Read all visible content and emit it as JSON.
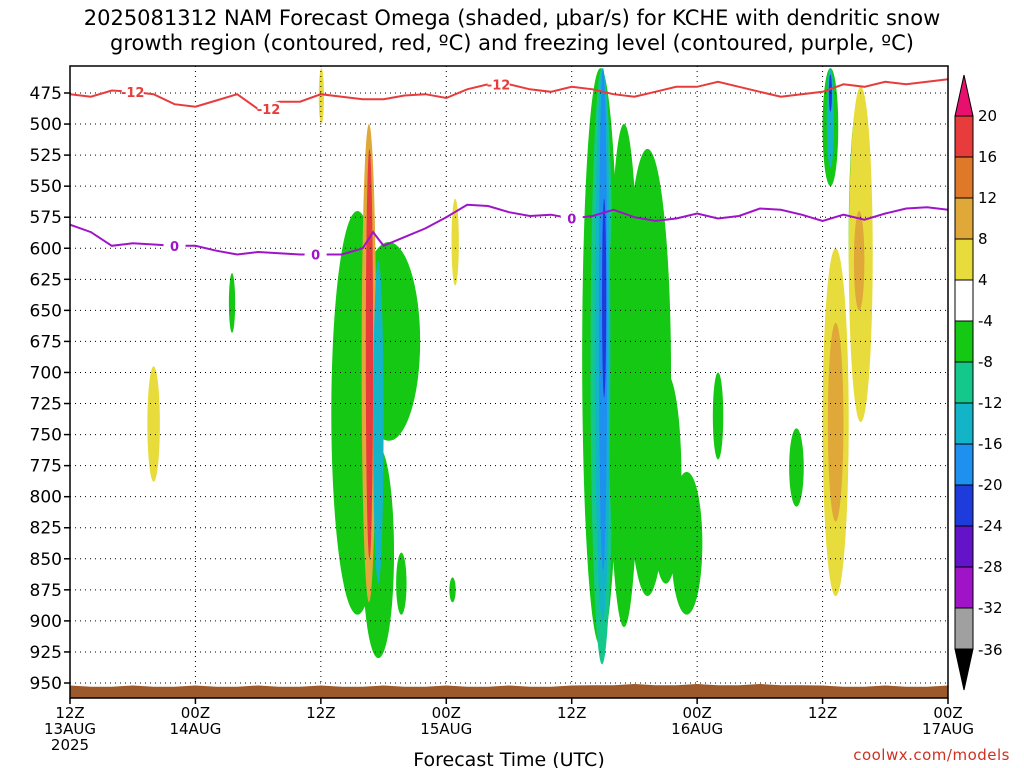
{
  "title_line1": "2025081312 NAM Forecast Omega (shaded, μbar/s) for KCHE with dendritic snow",
  "title_line2": "growth region (contoured, red, ºC) and freezing level (contoured, purple, ºC)",
  "credit": "coolwx.com/models",
  "chart_data": {
    "type": "heatmap",
    "xlabel": "Forecast Time (UTC)",
    "x_ticks": [
      {
        "hour": 0,
        "l1": "12Z",
        "l2": "13AUG",
        "l3": "2025"
      },
      {
        "hour": 12,
        "l1": "00Z",
        "l2": "14AUG",
        "l3": ""
      },
      {
        "hour": 24,
        "l1": "12Z",
        "l2": "",
        "l3": ""
      },
      {
        "hour": 36,
        "l1": "00Z",
        "l2": "15AUG",
        "l3": ""
      },
      {
        "hour": 48,
        "l1": "12Z",
        "l2": "",
        "l3": ""
      },
      {
        "hour": 60,
        "l1": "00Z",
        "l2": "16AUG",
        "l3": ""
      },
      {
        "hour": 72,
        "l1": "12Z",
        "l2": "",
        "l3": ""
      },
      {
        "hour": 84,
        "l1": "00Z",
        "l2": "17AUG",
        "l3": ""
      }
    ],
    "xlim": [
      0,
      84
    ],
    "ylabel": "",
    "y_ticks": [
      475,
      500,
      525,
      550,
      575,
      600,
      625,
      650,
      675,
      700,
      725,
      750,
      775,
      800,
      825,
      850,
      875,
      900,
      925,
      950
    ],
    "ylim": [
      455,
      960
    ],
    "grid": true,
    "colorbar": {
      "levels": [
        {
          "label": "",
          "color": "#e8106e"
        },
        {
          "label": "20",
          "color": "#e83c3c"
        },
        {
          "label": "16",
          "color": "#e0782a"
        },
        {
          "label": "12",
          "color": "#e0a838"
        },
        {
          "label": "8",
          "color": "#e8dc3c"
        },
        {
          "label": "4",
          "color": "#ffffff"
        },
        {
          "label": "-4",
          "color": "#14c814"
        },
        {
          "label": "-8",
          "color": "#14c88c"
        },
        {
          "label": "-12",
          "color": "#14b4c8"
        },
        {
          "label": "-16",
          "color": "#1e90f0"
        },
        {
          "label": "-20",
          "color": "#1e3cdc"
        },
        {
          "label": "-24",
          "color": "#6414c8"
        },
        {
          "label": "-28",
          "color": "#a014c8"
        },
        {
          "label": "-32",
          "color": "#a0a0a0"
        },
        {
          "label": "-36",
          "color": "#000000"
        }
      ]
    },
    "freezing_level": {
      "label": "0",
      "color": "#a014c8",
      "hours": [
        0,
        2,
        4,
        6,
        8,
        10,
        12,
        14,
        16,
        18,
        20,
        22,
        24,
        26,
        28,
        29,
        30,
        32,
        34,
        36,
        38,
        40,
        42,
        44,
        46,
        48,
        50,
        52,
        54,
        56,
        58,
        60,
        62,
        64,
        66,
        68,
        70,
        72,
        74,
        76,
        78,
        80,
        82,
        84
      ],
      "pressure": [
        581,
        587,
        598,
        596,
        597,
        598,
        598,
        602,
        605,
        603,
        604,
        605,
        605,
        605,
        600,
        587,
        598,
        591,
        584,
        575,
        565,
        566,
        571,
        574,
        573,
        576,
        574,
        569,
        575,
        578,
        576,
        572,
        576,
        574,
        568,
        569,
        573,
        578,
        573,
        577,
        572,
        568,
        567,
        569
      ]
    },
    "dgz_contour": {
      "label": "-12",
      "color": "#e83c3c",
      "hours": [
        0,
        2,
        4,
        6,
        8,
        10,
        12,
        14,
        16,
        18,
        20,
        22,
        24,
        26,
        28,
        30,
        32,
        34,
        36,
        38,
        40,
        42,
        44,
        46,
        48,
        50,
        52,
        54,
        56,
        58,
        60,
        62,
        64,
        66,
        68,
        70,
        72,
        74,
        76,
        78,
        80,
        82,
        84
      ],
      "pressure": [
        476,
        478,
        473,
        474,
        476,
        484,
        486,
        481,
        476,
        488,
        482,
        482,
        476,
        478,
        480,
        480,
        477,
        476,
        479,
        472,
        468,
        468,
        472,
        474,
        470,
        472,
        476,
        478,
        474,
        470,
        470,
        466,
        470,
        474,
        478,
        476,
        474,
        468,
        470,
        466,
        468,
        466,
        464
      ]
    },
    "shaded_regions": [
      {
        "t0": 7.4,
        "t1": 8.6,
        "p0": 695,
        "p1": 788,
        "value": 6
      },
      {
        "t0": 15.2,
        "t1": 15.8,
        "p0": 620,
        "p1": 668,
        "value": -6
      },
      {
        "t0": 23.8,
        "t1": 24.3,
        "p0": 455,
        "p1": 500,
        "value": 6
      },
      {
        "t0": 25.0,
        "t1": 30.0,
        "p0": 570,
        "p1": 895,
        "value": -6
      },
      {
        "t0": 27.5,
        "t1": 33.5,
        "p0": 595,
        "p1": 755,
        "value": -6
      },
      {
        "t0": 28.0,
        "t1": 31.0,
        "p0": 760,
        "p1": 930,
        "value": -6
      },
      {
        "t0": 27.9,
        "t1": 29.3,
        "p0": 500,
        "p1": 885,
        "value": 10
      },
      {
        "t0": 28.3,
        "t1": 29.0,
        "p0": 520,
        "p1": 850,
        "value": 18
      },
      {
        "t0": 29.0,
        "t1": 30.0,
        "p0": 610,
        "p1": 870,
        "value": -14
      },
      {
        "t0": 31.2,
        "t1": 32.2,
        "p0": 845,
        "p1": 895,
        "value": -6
      },
      {
        "t0": 36.5,
        "t1": 37.2,
        "p0": 560,
        "p1": 630,
        "value": 6
      },
      {
        "t0": 36.3,
        "t1": 36.9,
        "p0": 865,
        "p1": 885,
        "value": -6
      },
      {
        "t0": 49.0,
        "t1": 52.5,
        "p0": 455,
        "p1": 920,
        "value": -6
      },
      {
        "t0": 49.8,
        "t1": 52.0,
        "p0": 455,
        "p1": 935,
        "value": -10
      },
      {
        "t0": 51.5,
        "t1": 54.5,
        "p0": 500,
        "p1": 905,
        "value": -6
      },
      {
        "t0": 53.0,
        "t1": 57.5,
        "p0": 520,
        "p1": 880,
        "value": -6
      },
      {
        "t0": 55.5,
        "t1": 58.5,
        "p0": 700,
        "p1": 870,
        "value": -6
      },
      {
        "t0": 57.5,
        "t1": 60.5,
        "p0": 780,
        "p1": 895,
        "value": -6
      },
      {
        "t0": 50.2,
        "t1": 51.7,
        "p0": 455,
        "p1": 900,
        "value": -14
      },
      {
        "t0": 50.6,
        "t1": 51.4,
        "p0": 455,
        "p1": 860,
        "value": -18
      },
      {
        "t0": 50.9,
        "t1": 51.3,
        "p0": 560,
        "p1": 720,
        "value": -22
      },
      {
        "t0": 61.5,
        "t1": 62.5,
        "p0": 700,
        "p1": 770,
        "value": -6
      },
      {
        "t0": 68.8,
        "t1": 70.2,
        "p0": 745,
        "p1": 808,
        "value": -6
      },
      {
        "t0": 72.0,
        "t1": 73.5,
        "p0": 455,
        "p1": 550,
        "value": -6
      },
      {
        "t0": 72.4,
        "t1": 73.1,
        "p0": 455,
        "p1": 535,
        "value": -14
      },
      {
        "t0": 72.6,
        "t1": 72.9,
        "p0": 460,
        "p1": 490,
        "value": -20
      },
      {
        "t0": 74.5,
        "t1": 76.5,
        "p0": 480,
        "p1": 700,
        "value": -6
      },
      {
        "t0": 74.5,
        "t1": 76.8,
        "p0": 470,
        "p1": 740,
        "value": 6
      },
      {
        "t0": 75.0,
        "t1": 76.0,
        "p0": 570,
        "p1": 650,
        "value": 10
      },
      {
        "t0": 72.0,
        "t1": 74.5,
        "p0": 600,
        "p1": 880,
        "value": 6
      },
      {
        "t0": 72.5,
        "t1": 74.0,
        "p0": 660,
        "p1": 820,
        "value": 10
      }
    ]
  }
}
